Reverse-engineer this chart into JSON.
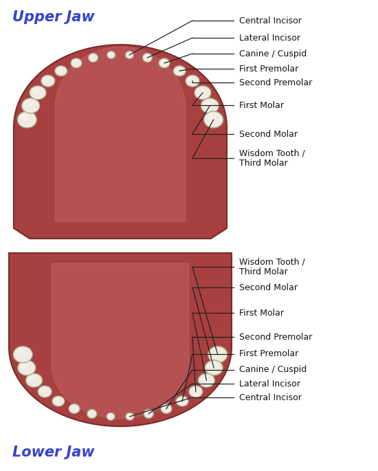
{
  "bg_color": "#ffffff",
  "jaw_fill": "#a84040",
  "jaw_edge": "#7a2a2a",
  "inner_fill": "#b85555",
  "tooth_fill": "#eeebe0",
  "tooth_edge": "#aaa890",
  "upper_jaw_title": "Upper Jaw",
  "lower_jaw_title": "Lower Jaw",
  "title_color": "#3344cc",
  "label_color": "#111111",
  "label_fontsize": 9.0,
  "title_fontsize": 15,
  "upper_labels": [
    "Central Incisor",
    "Lateral Incisor",
    "Canine / Cuspid",
    "First Premolar",
    "Second Premolar",
    "First Molar",
    "Second Molar",
    "Wisdom Tooth /\nThird Molar"
  ],
  "lower_labels": [
    "Wisdom Tooth /\nThird Molar",
    "Second Molar",
    "First Molar",
    "Second Premolar",
    "First Premolar",
    "Canine / Cuspid",
    "Lateral Incisor",
    "Central Incisor"
  ],
  "upper_label_y_img": [
    30,
    55,
    78,
    100,
    120,
    153,
    195,
    230
  ],
  "lower_label_y_img": [
    388,
    418,
    455,
    490,
    515,
    538,
    558,
    578
  ]
}
